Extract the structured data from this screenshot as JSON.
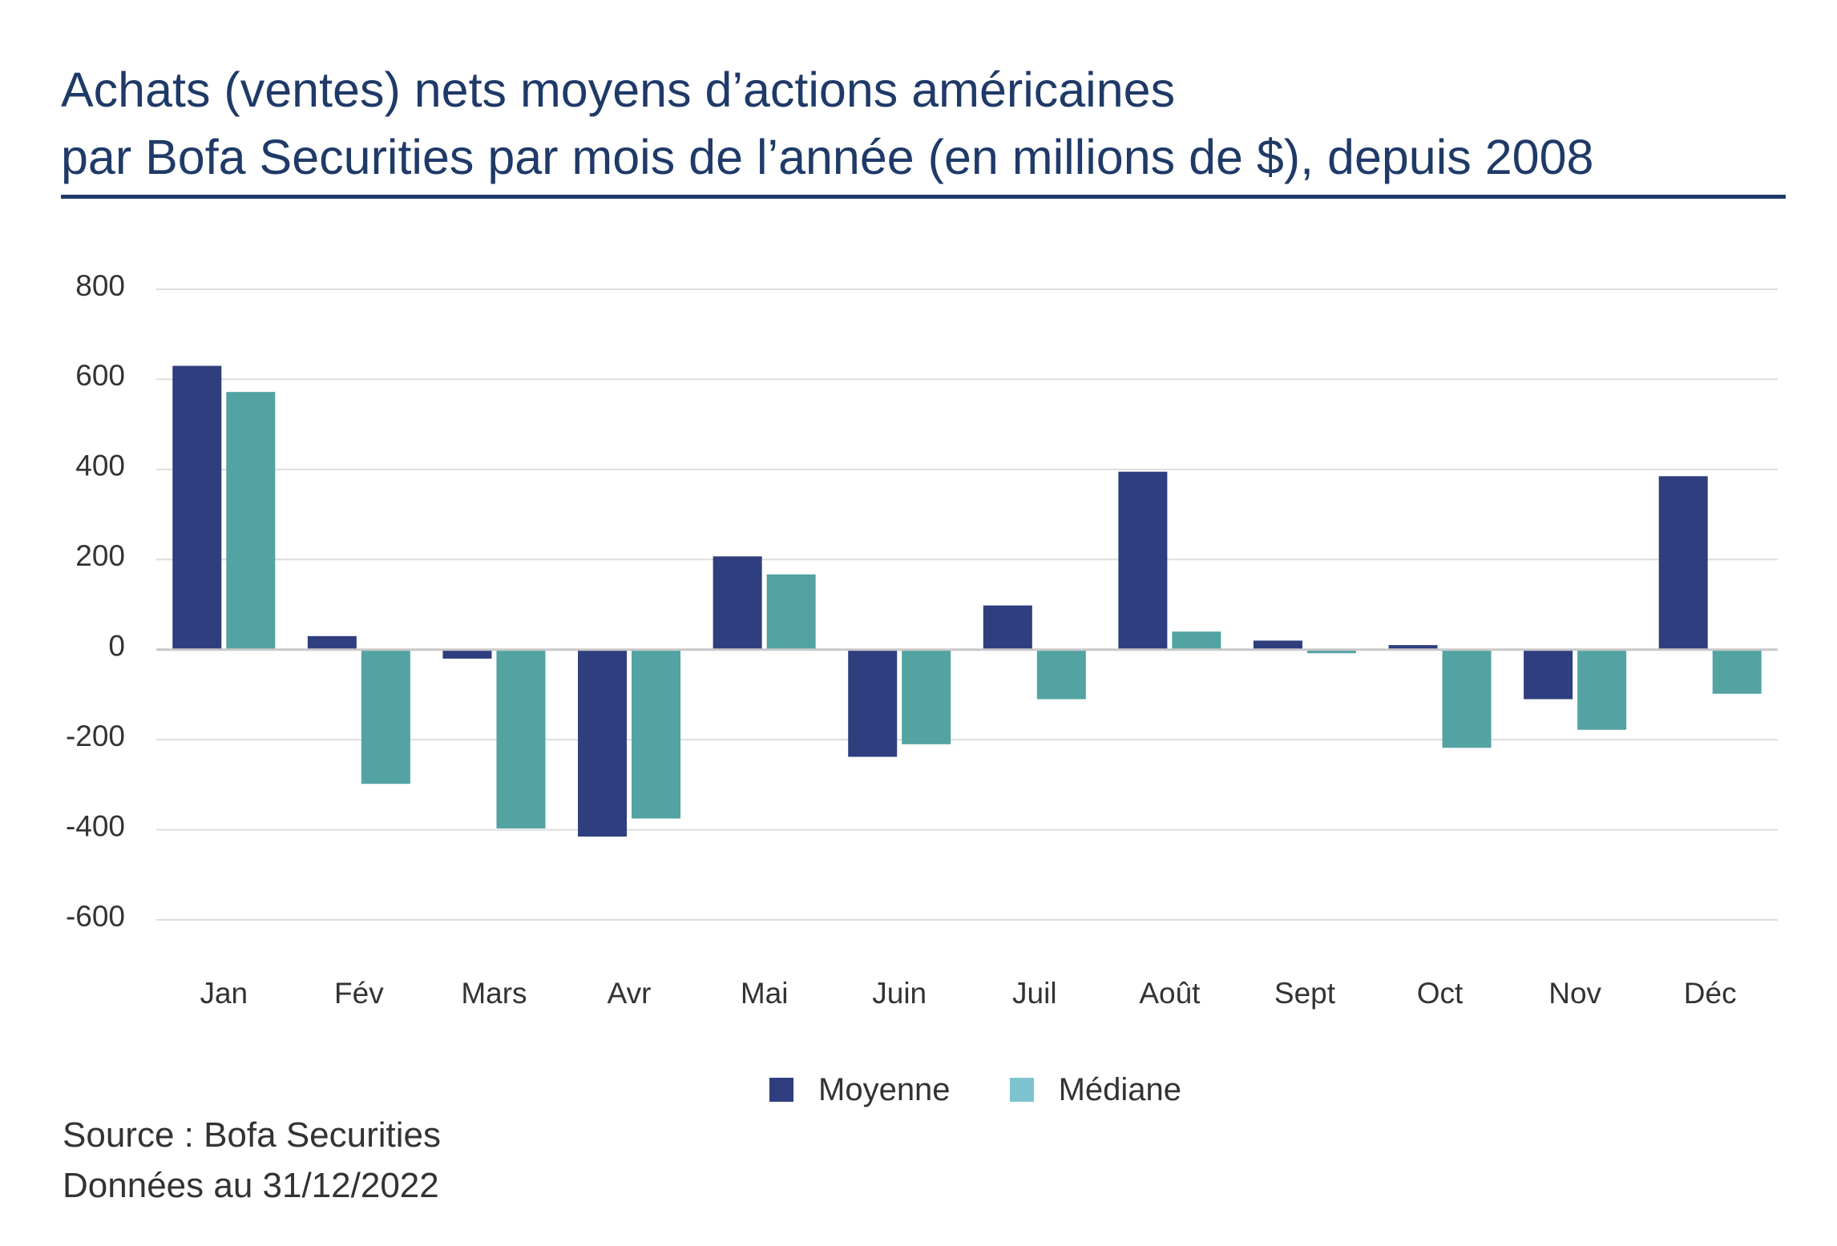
{
  "title": {
    "line1": "Achats (ventes) nets moyens d’actions américaines",
    "line2": "par Bofa Securities par mois de l’année (en millions de $), depuis 2008"
  },
  "colors": {
    "title": "#1f3a68",
    "moyenne": "#2e3e7e",
    "mediane": "#52a3a2",
    "mediane_legend": "#7ec4cf",
    "grid": "#dddddd",
    "zero_line": "#c8c8c8",
    "text": "#333333"
  },
  "chart_data": {
    "type": "bar",
    "categories": [
      "Jan",
      "Fév",
      "Mars",
      "Avr",
      "Mai",
      "Juin",
      "Juil",
      "Août",
      "Sept",
      "Oct",
      "Nov",
      "Déc"
    ],
    "series": [
      {
        "name": "Moyenne",
        "values": [
          630,
          30,
          -20,
          -415,
          207,
          -238,
          98,
          395,
          20,
          10,
          -110,
          385
        ]
      },
      {
        "name": "Médiane",
        "values": [
          572,
          -298,
          -397,
          -375,
          167,
          -210,
          -110,
          40,
          -8,
          -218,
          -178,
          -98
        ]
      }
    ],
    "yticks": [
      800,
      600,
      400,
      200,
      0,
      -200,
      -400,
      -600
    ],
    "ytick_labels": [
      "800",
      "600",
      "400",
      "200",
      "0",
      "-200",
      "-400",
      "-600"
    ],
    "ylim": [
      -600,
      800
    ],
    "grid": true,
    "legend_position": "bottom-center"
  },
  "legend": {
    "items": [
      {
        "label": "Moyenne"
      },
      {
        "label": "Médiane"
      }
    ]
  },
  "footer": {
    "source": "Source : Bofa Securities",
    "date": "Données au 31/12/2022"
  }
}
